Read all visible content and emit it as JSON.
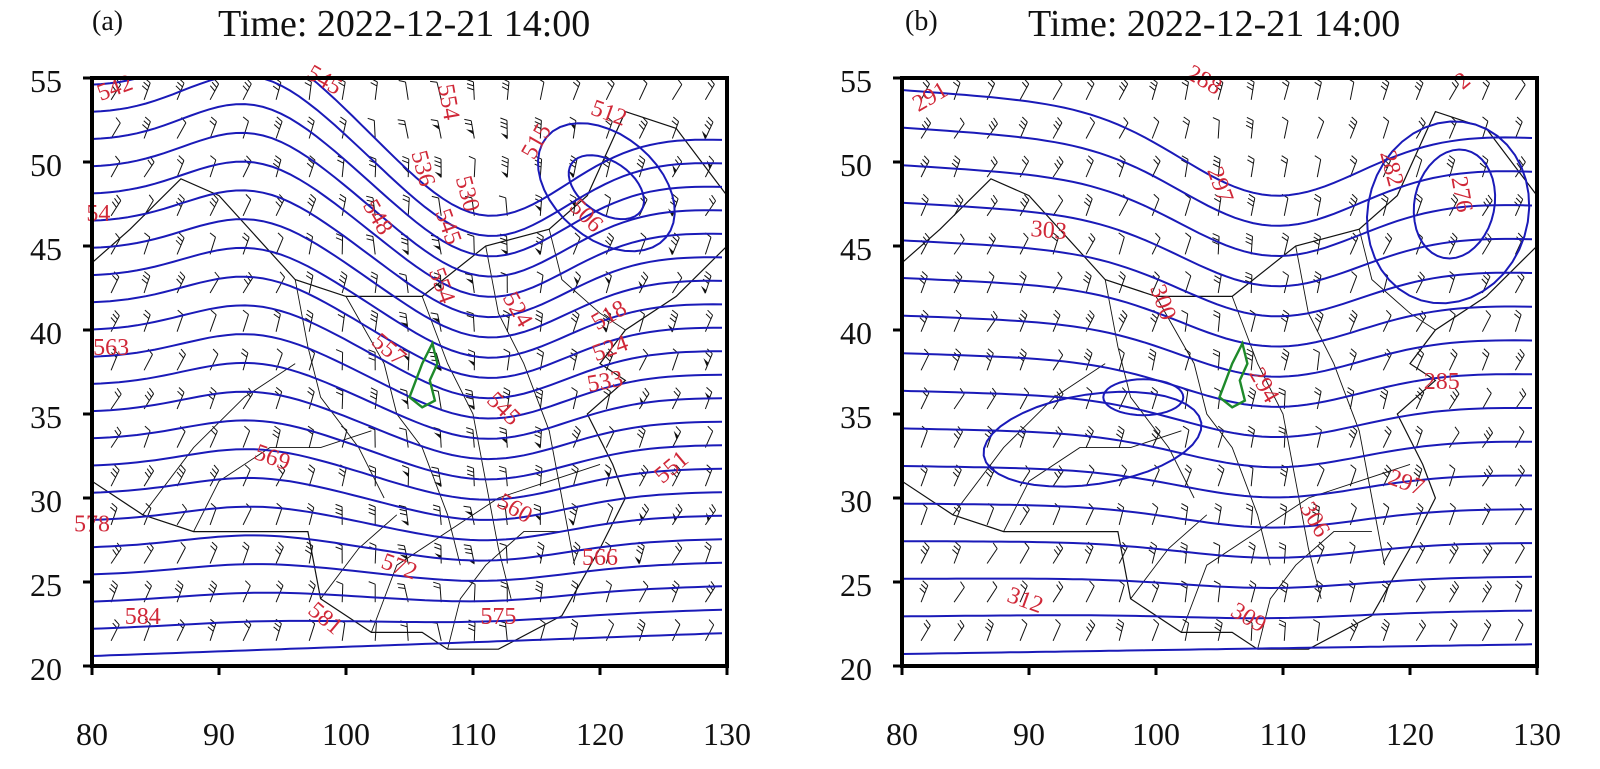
{
  "colors": {
    "contour": "#1a1ab8",
    "contour_label": "#d02838",
    "boundary": "#111111",
    "wind_barb": "#111111",
    "highlight_region": "#1e8a2a",
    "frame": "#000000"
  },
  "panels": [
    {
      "id": "a",
      "label": "(a)",
      "title": "Time: 2022-12-21 14:00",
      "x_ticks": [
        "80",
        "90",
        "100",
        "110",
        "120",
        "130"
      ],
      "y_ticks": [
        "55",
        "50",
        "45",
        "40",
        "35",
        "30",
        "25",
        "20"
      ],
      "contour_labels": [
        {
          "text": "542",
          "lon": 82.0,
          "lat": 54.0,
          "rot": -20
        },
        {
          "text": "545",
          "lon": 98.0,
          "lat": 54.5,
          "rot": 30
        },
        {
          "text": "554",
          "lon": 107.5,
          "lat": 53.5,
          "rot": 80
        },
        {
          "text": "515",
          "lon": 115.5,
          "lat": 51.0,
          "rot": -60
        },
        {
          "text": "512",
          "lon": 120.5,
          "lat": 52.5,
          "rot": 20
        },
        {
          "text": "54",
          "lon": 80.5,
          "lat": 46.5,
          "rot": 0
        },
        {
          "text": "548",
          "lon": 102.0,
          "lat": 46.5,
          "rot": 60
        },
        {
          "text": "536",
          "lon": 105.5,
          "lat": 49.5,
          "rot": 75
        },
        {
          "text": "545",
          "lon": 107.5,
          "lat": 46.0,
          "rot": 70
        },
        {
          "text": "530",
          "lon": 109.0,
          "lat": 48.0,
          "rot": 75
        },
        {
          "text": "506",
          "lon": 118.5,
          "lat": 46.5,
          "rot": 45
        },
        {
          "text": "554",
          "lon": 107.0,
          "lat": 42.5,
          "rot": 70
        },
        {
          "text": "524",
          "lon": 113.0,
          "lat": 41.0,
          "rot": 60
        },
        {
          "text": "518",
          "lon": 121.0,
          "lat": 40.5,
          "rot": -30
        },
        {
          "text": "524",
          "lon": 121.0,
          "lat": 38.5,
          "rot": -20
        },
        {
          "text": "533",
          "lon": 120.5,
          "lat": 36.5,
          "rot": -10
        },
        {
          "text": "557",
          "lon": 103.0,
          "lat": 38.5,
          "rot": 40
        },
        {
          "text": "563",
          "lon": 81.5,
          "lat": 38.5,
          "rot": 0
        },
        {
          "text": "545",
          "lon": 112.0,
          "lat": 35.0,
          "rot": 45
        },
        {
          "text": "569",
          "lon": 94.0,
          "lat": 32.0,
          "rot": 20
        },
        {
          "text": "551",
          "lon": 126.0,
          "lat": 31.5,
          "rot": -40
        },
        {
          "text": "560",
          "lon": 113.0,
          "lat": 29.0,
          "rot": 30
        },
        {
          "text": "578",
          "lon": 80.0,
          "lat": 28.0,
          "rot": 0
        },
        {
          "text": "572",
          "lon": 104.0,
          "lat": 25.5,
          "rot": 20
        },
        {
          "text": "566",
          "lon": 120.0,
          "lat": 26.0,
          "rot": 0
        },
        {
          "text": "584",
          "lon": 84.0,
          "lat": 22.5,
          "rot": 0
        },
        {
          "text": "581",
          "lon": 98.0,
          "lat": 22.5,
          "rot": 40
        },
        {
          "text": "575",
          "lon": 112.0,
          "lat": 22.5,
          "rot": 0
        }
      ]
    },
    {
      "id": "b",
      "label": "(b)",
      "title": "Time: 2022-12-21 14:00",
      "x_ticks": [
        "80",
        "90",
        "100",
        "110",
        "120",
        "130"
      ],
      "y_ticks": [
        "55",
        "50",
        "45",
        "40",
        "35",
        "30",
        "25",
        "20"
      ],
      "contour_labels": [
        {
          "text": "291",
          "lon": 82.5,
          "lat": 53.5,
          "rot": -30
        },
        {
          "text": "288",
          "lon": 103.5,
          "lat": 54.5,
          "rot": 30
        },
        {
          "text": "2",
          "lon": 124.5,
          "lat": 54.5,
          "rot": -40
        },
        {
          "text": "282",
          "lon": 118.0,
          "lat": 49.5,
          "rot": 75
        },
        {
          "text": "276",
          "lon": 123.5,
          "lat": 48.0,
          "rot": 80
        },
        {
          "text": "297",
          "lon": 104.5,
          "lat": 48.5,
          "rot": 70
        },
        {
          "text": "303",
          "lon": 91.5,
          "lat": 45.5,
          "rot": 5
        },
        {
          "text": "300",
          "lon": 100.0,
          "lat": 41.5,
          "rot": 70
        },
        {
          "text": "294",
          "lon": 108.0,
          "lat": 36.5,
          "rot": 60
        },
        {
          "text": "285",
          "lon": 122.5,
          "lat": 36.5,
          "rot": 0
        },
        {
          "text": "297",
          "lon": 119.5,
          "lat": 30.5,
          "rot": 20
        },
        {
          "text": "306",
          "lon": 112.0,
          "lat": 28.5,
          "rot": 60
        },
        {
          "text": "312",
          "lon": 89.5,
          "lat": 23.5,
          "rot": 20
        },
        {
          "text": "309",
          "lon": 107.0,
          "lat": 22.5,
          "rot": 30
        }
      ]
    }
  ]
}
